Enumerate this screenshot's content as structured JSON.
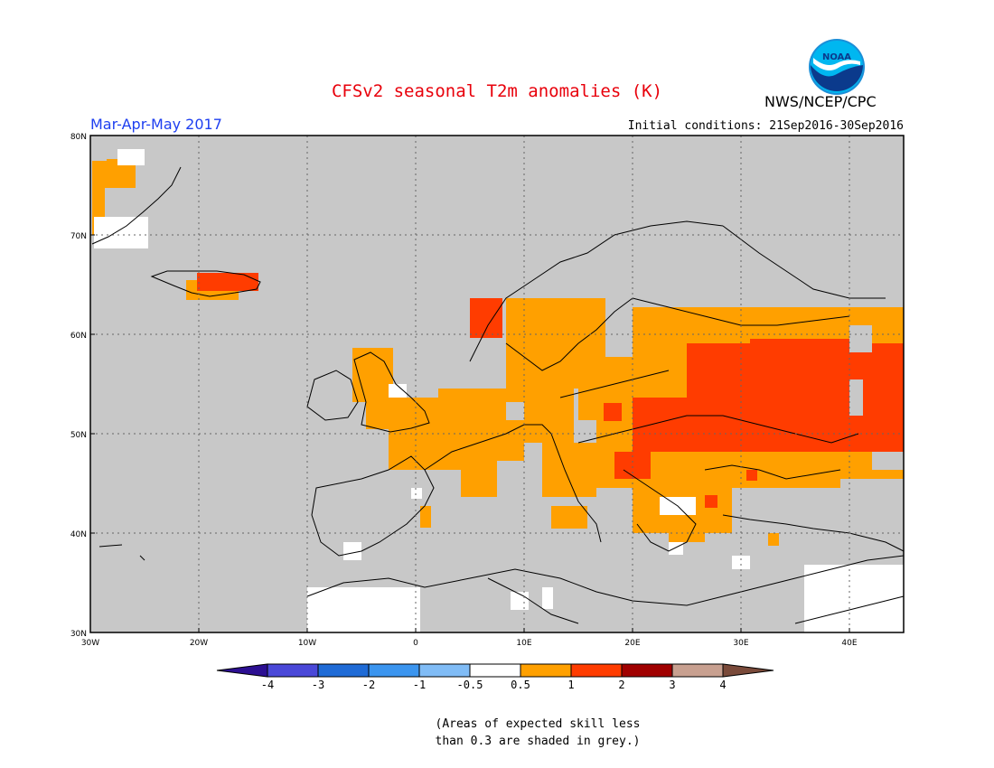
{
  "header": {
    "title": "CFSv2 seasonal T2m anomalies (K)",
    "season": "Mar-Apr-May 2017",
    "initial_conditions": "Initial conditions: 21Sep2016-30Sep2016",
    "agency": "NWS/NCEP/CPC",
    "logo_text": "NOAA"
  },
  "map": {
    "region": "Europe",
    "lat_labels": [
      "80N",
      "70N",
      "60N",
      "50N",
      "40N",
      "30N"
    ],
    "lon_labels": [
      "30W",
      "20W",
      "10W",
      "0",
      "10E",
      "20E",
      "30E",
      "40E"
    ],
    "lat_range": [
      30,
      80
    ],
    "lon_range": [
      -30,
      45
    ],
    "grid": "dotted",
    "land_no_skill_color": "#c8c8c8",
    "ocean_color": "#c8c8c8"
  },
  "colorbar": {
    "tick_labels": [
      "-4",
      "-3",
      "-2",
      "-1",
      "-0.5",
      "0.5",
      "1",
      "2",
      "3",
      "4"
    ],
    "colors": [
      "#2c0f92",
      "#4a48d8",
      "#1f6bd6",
      "#3b95ef",
      "#80bcf6",
      "#ffffff",
      "#ffa000",
      "#ff3c00",
      "#a00000",
      "#c8a090",
      "#7a4a3a"
    ]
  },
  "note": {
    "line1": "(Areas of expected skill less",
    "line2": "than 0.3 are shaded in grey.)"
  }
}
